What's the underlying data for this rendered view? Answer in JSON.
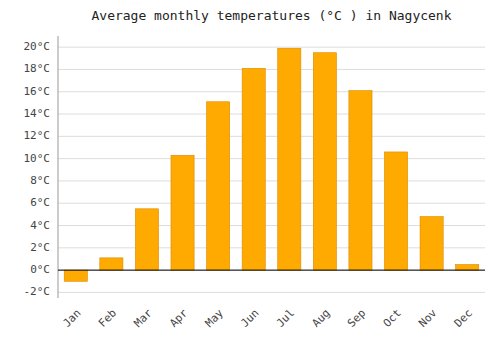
{
  "chart_data": {
    "type": "bar",
    "title": "Average monthly temperatures (°C ) in Nagycenk",
    "categories": [
      "Jan",
      "Feb",
      "Mar",
      "Apr",
      "May",
      "Jun",
      "Jul",
      "Aug",
      "Sep",
      "Oct",
      "Nov",
      "Dec"
    ],
    "values": [
      -1.0,
      1.1,
      5.5,
      10.3,
      15.1,
      18.1,
      19.9,
      19.5,
      16.1,
      10.6,
      4.8,
      0.5
    ],
    "color": "#FFAA00",
    "ylim": [
      -2.5,
      21
    ],
    "yticks": [
      {
        "value": -2,
        "label": "-2°C"
      },
      {
        "value": 0,
        "label": "0°C"
      },
      {
        "value": 2,
        "label": "2°C"
      },
      {
        "value": 4,
        "label": "4°C"
      },
      {
        "value": 6,
        "label": "6°C"
      },
      {
        "value": 8,
        "label": "8°C"
      },
      {
        "value": 10,
        "label": "10°C"
      },
      {
        "value": 12,
        "label": "12°C"
      },
      {
        "value": 14,
        "label": "14°C"
      },
      {
        "value": 16,
        "label": "16°C"
      },
      {
        "value": 18,
        "label": "18°C"
      },
      {
        "value": 20,
        "label": "20°C"
      }
    ],
    "grid": true
  }
}
